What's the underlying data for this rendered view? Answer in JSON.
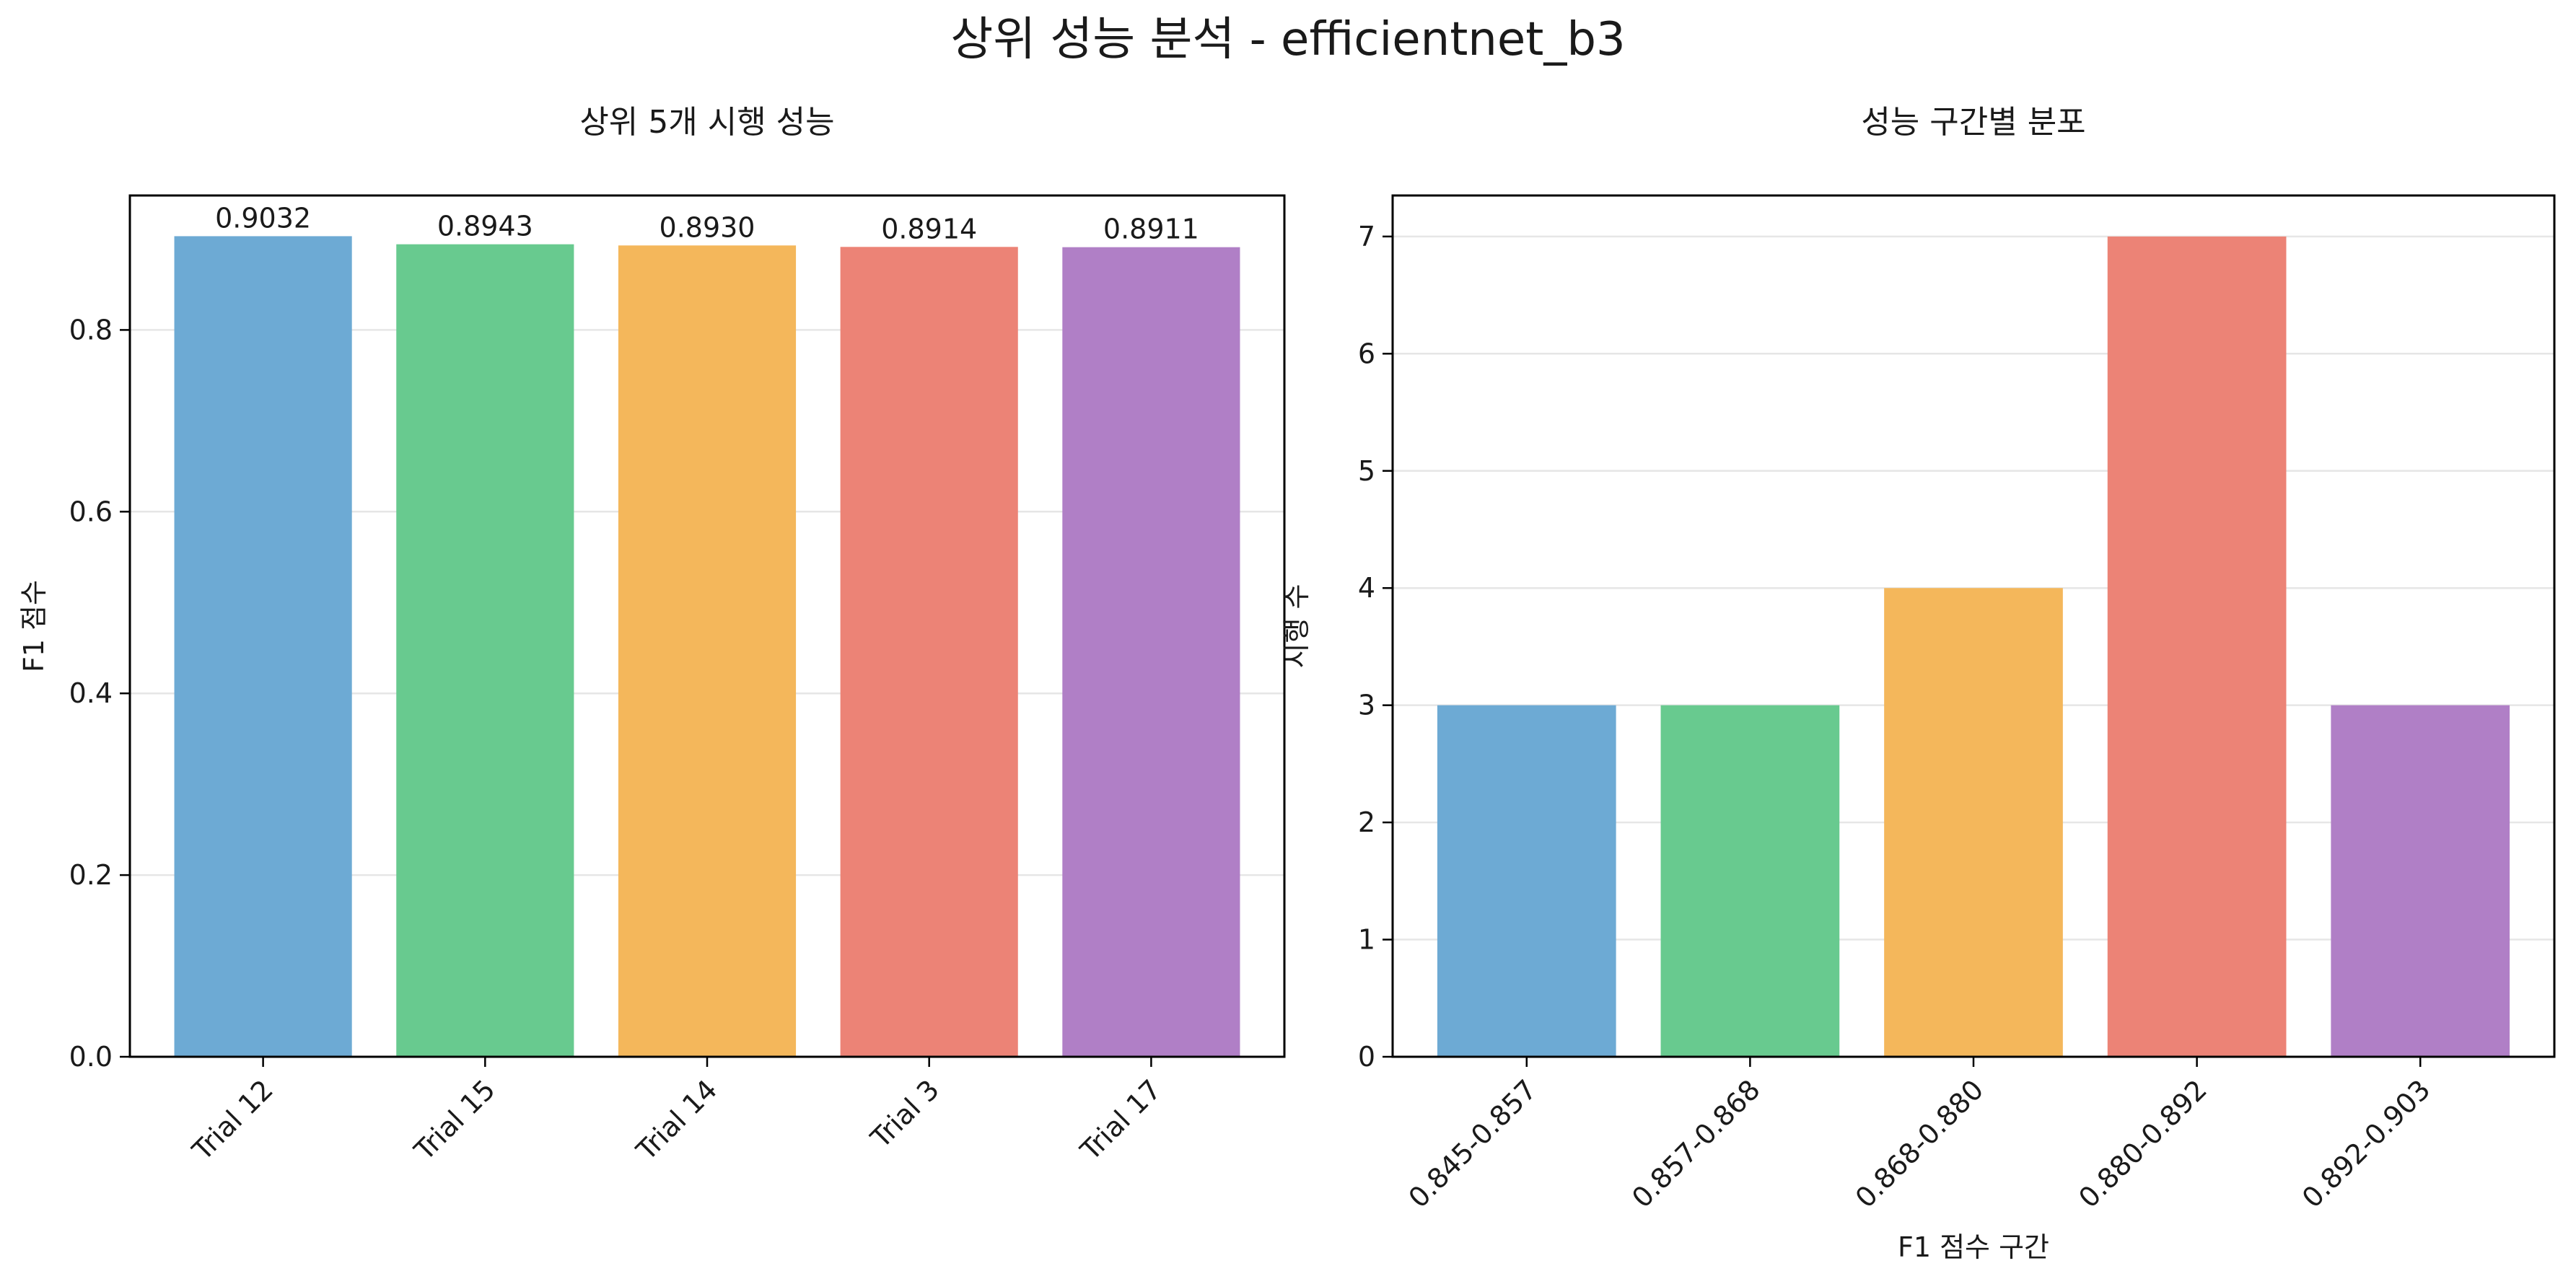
{
  "suptitle": "상위 성능 분석 - efficientnet_b3",
  "colors": {
    "palette": [
      "#6daad4",
      "#68ca8f",
      "#f4b75b",
      "#ec8376",
      "#b07fc6"
    ],
    "grid": "#e6e6e6",
    "frame": "#000000"
  },
  "chart_data": [
    {
      "type": "bar",
      "title": "상위 5개 시행 성능",
      "xlabel": "",
      "ylabel": "F1 점수",
      "categories": [
        "Trial 12",
        "Trial 15",
        "Trial 14",
        "Trial 3",
        "Trial 17"
      ],
      "values": [
        0.9032,
        0.8943,
        0.893,
        0.8914,
        0.8911
      ],
      "value_labels": [
        "0.9032",
        "0.8943",
        "0.8930",
        "0.8914",
        "0.8911"
      ],
      "ylim": [
        0,
        0.948
      ],
      "yticks": [
        0.0,
        0.2,
        0.4,
        0.6,
        0.8
      ],
      "ytick_labels": [
        "0.0",
        "0.2",
        "0.4",
        "0.6",
        "0.8"
      ],
      "xtick_rotation": 45,
      "grid": "y",
      "legend": "none"
    },
    {
      "type": "bar",
      "title": "성능 구간별 분포",
      "xlabel": "F1 점수 구간",
      "ylabel": "시행 수",
      "categories": [
        "0.845-0.857",
        "0.857-0.868",
        "0.868-0.880",
        "0.880-0.892",
        "0.892-0.903"
      ],
      "values": [
        3,
        3,
        4,
        7,
        3
      ],
      "ylim": [
        0,
        7.35
      ],
      "yticks": [
        0,
        1,
        2,
        3,
        4,
        5,
        6,
        7
      ],
      "ytick_labels": [
        "0",
        "1",
        "2",
        "3",
        "4",
        "5",
        "6",
        "7"
      ],
      "xtick_rotation": 45,
      "grid": "y",
      "legend": "none"
    }
  ]
}
